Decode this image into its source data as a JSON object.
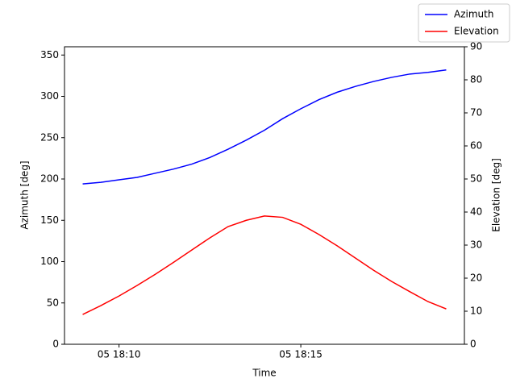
{
  "chart_data": {
    "type": "line",
    "x_label": "Time",
    "y_label": "Azimuth [deg]",
    "y2_label": "Elevation [deg]",
    "x": [
      "05 18:09:00",
      "05 18:09:30",
      "05 18:10:00",
      "05 18:10:30",
      "05 18:11:00",
      "05 18:11:30",
      "05 18:12:00",
      "05 18:12:30",
      "05 18:13:00",
      "05 18:13:30",
      "05 18:14:00",
      "05 18:14:30",
      "05 18:15:00",
      "05 18:15:30",
      "05 18:16:00",
      "05 18:16:30",
      "05 18:17:00",
      "05 18:17:30",
      "05 18:18:00",
      "05 18:18:30",
      "05 18:19:00"
    ],
    "series": [
      {
        "name": "Azimuth",
        "color": "#0000ff",
        "values": [
          194,
          196,
          199,
          202,
          207,
          212,
          218,
          226,
          236,
          247,
          259,
          273,
          285,
          296,
          305,
          312,
          318,
          323,
          327,
          329,
          332
        ]
      },
      {
        "name": "Elevation",
        "color": "#ff0000",
        "axis": "y2",
        "values": [
          9,
          11.7,
          14.6,
          17.8,
          21.2,
          24.8,
          28.5,
          32.2,
          35.6,
          37.5,
          38.8,
          38.4,
          36.3,
          33.2,
          29.8,
          26.1,
          22.4,
          19,
          15.9,
          12.9,
          10.7
        ]
      }
    ],
    "xlim": [
      "05 18:08:30",
      "05 18:19:30"
    ],
    "xticks": [
      {
        "value": "05 18:10:00",
        "label": "05 18:10"
      },
      {
        "value": "05 18:15:00",
        "label": "05 18:15"
      }
    ],
    "ylim": [
      0,
      360
    ],
    "yticks": [
      0,
      50,
      100,
      150,
      200,
      250,
      300,
      350
    ],
    "y2lim": [
      0,
      90
    ],
    "y2ticks": [
      0,
      10,
      20,
      30,
      40,
      50,
      60,
      70,
      80,
      90
    ],
    "grid": false,
    "legend": "upper right"
  }
}
